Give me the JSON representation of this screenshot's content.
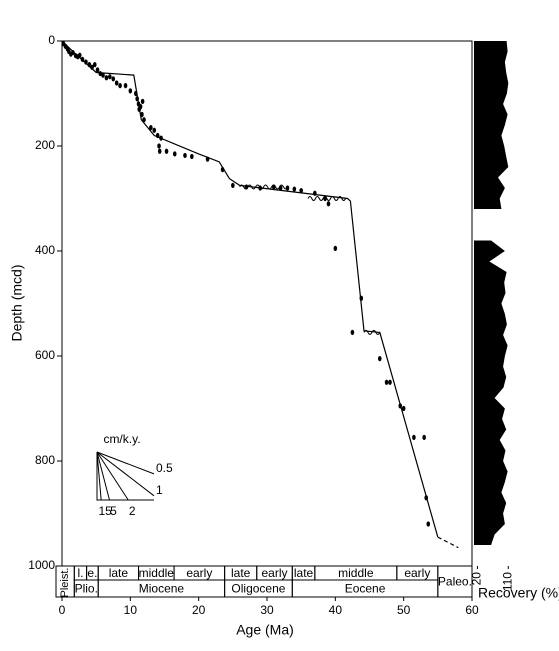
{
  "chart_data": {
    "type": "age-depth",
    "xlabel": "Age (Ma)",
    "ylabel": "Depth (mcd)",
    "xlim": [
      0,
      60
    ],
    "xticks": [
      0,
      10,
      20,
      30,
      40,
      50,
      60
    ],
    "ylim": [
      0,
      1000
    ],
    "yticks": [
      0,
      200,
      400,
      600,
      800,
      1000
    ],
    "color": "#000000",
    "datums": {
      "x": [
        0.2,
        0.5,
        0.8,
        1,
        1.3,
        1.6,
        2,
        2.3,
        2.6,
        3,
        3.5,
        4,
        4.4,
        4.8,
        5.2,
        5.6,
        6,
        6.5,
        7,
        7.5,
        8,
        8.5,
        9.3,
        10,
        10.8,
        11,
        11.2,
        11.5,
        11.8,
        11.3,
        11.7,
        12,
        13,
        13.5,
        14,
        14.5,
        14.2,
        14.3,
        15.3,
        16.5,
        18,
        19,
        21.3,
        23.5,
        25,
        27,
        29,
        31,
        32,
        33,
        34,
        35,
        37,
        38.5,
        39,
        40,
        42.5,
        43.8,
        46.5,
        47.5,
        48,
        49.5,
        50,
        51.5,
        53,
        53.3,
        53.6
      ],
      "y": [
        5,
        10,
        15,
        20,
        25,
        22,
        28,
        30,
        27,
        35,
        40,
        45,
        50,
        45,
        55,
        62,
        65,
        70,
        68,
        72,
        80,
        85,
        85,
        95,
        100,
        110,
        120,
        125,
        115,
        130,
        140,
        150,
        165,
        170,
        180,
        185,
        200,
        210,
        210,
        215,
        218,
        220,
        225,
        245,
        275,
        278,
        280,
        278,
        280,
        280,
        282,
        285,
        290,
        300,
        310,
        395,
        555,
        490,
        605,
        650,
        650,
        695,
        700,
        755,
        755,
        870,
        920
      ]
    },
    "age_model": {
      "x": [
        0,
        2,
        5,
        10.5,
        11.6,
        13.5,
        20,
        23,
        24.5,
        26,
        41.8,
        42.2,
        44.2,
        46.5,
        55
      ],
      "y": [
        0,
        25,
        60,
        65,
        150,
        180,
        215,
        230,
        262,
        275,
        300,
        305,
        552,
        555,
        945
      ]
    },
    "extrapolation": {
      "x": [
        55,
        58
      ],
      "y": [
        945,
        965
      ]
    },
    "hiatuses": [
      {
        "from": 26,
        "to": 33,
        "depth": 278
      },
      {
        "from": 36,
        "to": 41.5,
        "depth": 300
      },
      {
        "from": 44.2,
        "to": 46.5,
        "depth": 555
      }
    ],
    "stages": [
      {
        "label": "l.",
        "from": 1.8,
        "to": 3.6
      },
      {
        "label": "e.",
        "from": 3.6,
        "to": 5.3
      },
      {
        "label": "late",
        "from": 5.3,
        "to": 11.2
      },
      {
        "label": "middle",
        "from": 11.2,
        "to": 16.4
      },
      {
        "label": "early",
        "from": 16.4,
        "to": 23.8
      },
      {
        "label": "late",
        "from": 23.8,
        "to": 28.5
      },
      {
        "label": "early",
        "from": 28.5,
        "to": 33.7
      },
      {
        "label": "late",
        "from": 33.7,
        "to": 37
      },
      {
        "label": "middle",
        "from": 37,
        "to": 49
      },
      {
        "label": "early",
        "from": 49,
        "to": 55
      }
    ],
    "epochs": [
      {
        "label": "Pleist.",
        "from": 0,
        "to": 1.8
      },
      {
        "label": "Plio.",
        "from": 1.8,
        "to": 5.3
      },
      {
        "label": "Miocene",
        "from": 5.3,
        "to": 23.8
      },
      {
        "label": "Oligocene",
        "from": 23.8,
        "to": 33.7
      },
      {
        "label": "Eocene",
        "from": 33.7,
        "to": 55
      },
      {
        "label": "Paleo.",
        "from": 55,
        "to": 60
      }
    ],
    "inset": {
      "title": "cm/k.y.",
      "rates": [
        0.5,
        1,
        2,
        5,
        15
      ]
    },
    "recovery": {
      "xlabel": "Recovery (%)",
      "xlim": [
        10,
        115
      ],
      "xticks": [
        20,
        110
      ],
      "depth": [
        0,
        20,
        40,
        60,
        80,
        100,
        120,
        140,
        160,
        180,
        200,
        220,
        240,
        260,
        280,
        300,
        320,
        340,
        360,
        380,
        400,
        420,
        440,
        460,
        480,
        500,
        520,
        540,
        560,
        580,
        600,
        620,
        640,
        660,
        680,
        700,
        720,
        740,
        760,
        780,
        800,
        820,
        840,
        860,
        880,
        900,
        920,
        940,
        960
      ],
      "values": [
        105,
        108,
        100,
        104,
        110,
        106,
        95,
        108,
        100,
        90,
        98,
        104,
        110,
        80,
        100,
        85,
        90,
        null,
        null,
        60,
        100,
        55,
        105,
        98,
        102,
        90,
        100,
        106,
        95,
        108,
        100,
        95,
        104,
        96,
        70,
        100,
        92,
        104,
        85,
        102,
        95,
        108,
        100,
        90,
        104,
        95,
        100,
        70,
        60
      ]
    }
  }
}
